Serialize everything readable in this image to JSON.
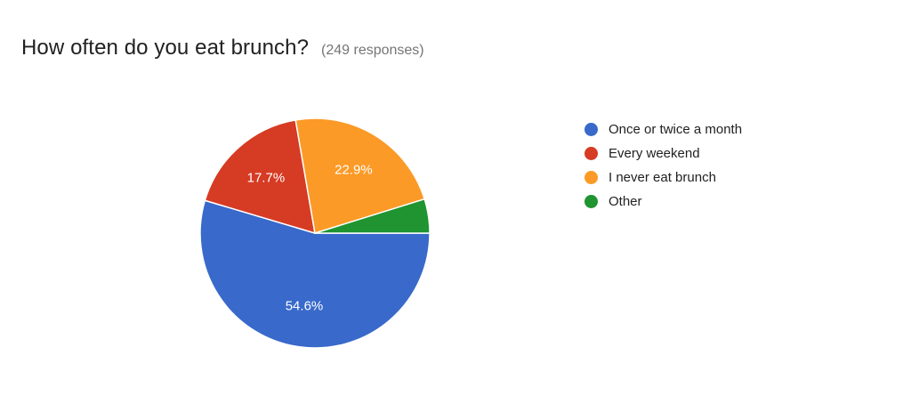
{
  "header": {
    "title": "How often do you eat brunch?",
    "response_count": "(249 responses)"
  },
  "chart_data": {
    "type": "pie",
    "title": "How often do you eat brunch?",
    "subtitle": "(249 responses)",
    "legend_position": "right",
    "slices": [
      {
        "label": "Once or twice a month",
        "value": 54.6,
        "display": "54.6%",
        "color": "#3869cb"
      },
      {
        "label": "Every weekend",
        "value": 17.7,
        "display": "17.7%",
        "color": "#d63b24"
      },
      {
        "label": "I never eat brunch",
        "value": 22.9,
        "display": "22.9%",
        "color": "#fb9a26"
      },
      {
        "label": "Other",
        "value": 4.8,
        "display": "",
        "color": "#1f9430"
      }
    ]
  }
}
